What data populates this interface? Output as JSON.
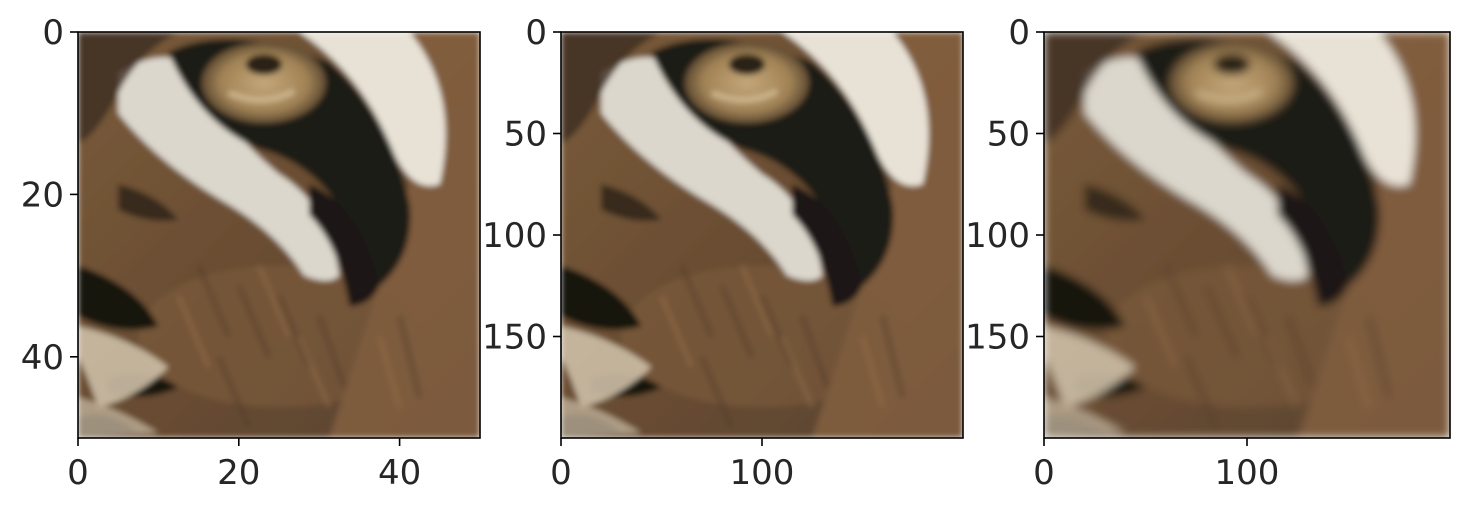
{
  "chart_data": [
    {
      "type": "image",
      "image_subject": "tiger eye close-up",
      "xlim": [
        0,
        50
      ],
      "ylim": [
        50,
        0
      ],
      "xticks": [
        "0",
        "20",
        "40"
      ],
      "yticks": [
        "0",
        "20",
        "40"
      ]
    },
    {
      "type": "image",
      "image_subject": "tiger eye close-up",
      "xlim": [
        0,
        200
      ],
      "ylim": [
        200,
        0
      ],
      "xticks": [
        "0",
        "100"
      ],
      "yticks": [
        "0",
        "50",
        "100",
        "150"
      ]
    },
    {
      "type": "image",
      "image_subject": "tiger eye close-up",
      "xlim": [
        0,
        200
      ],
      "ylim": [
        200,
        0
      ],
      "xticks": [
        "0",
        "100"
      ],
      "yticks": [
        "0",
        "50",
        "100",
        "150"
      ]
    }
  ]
}
